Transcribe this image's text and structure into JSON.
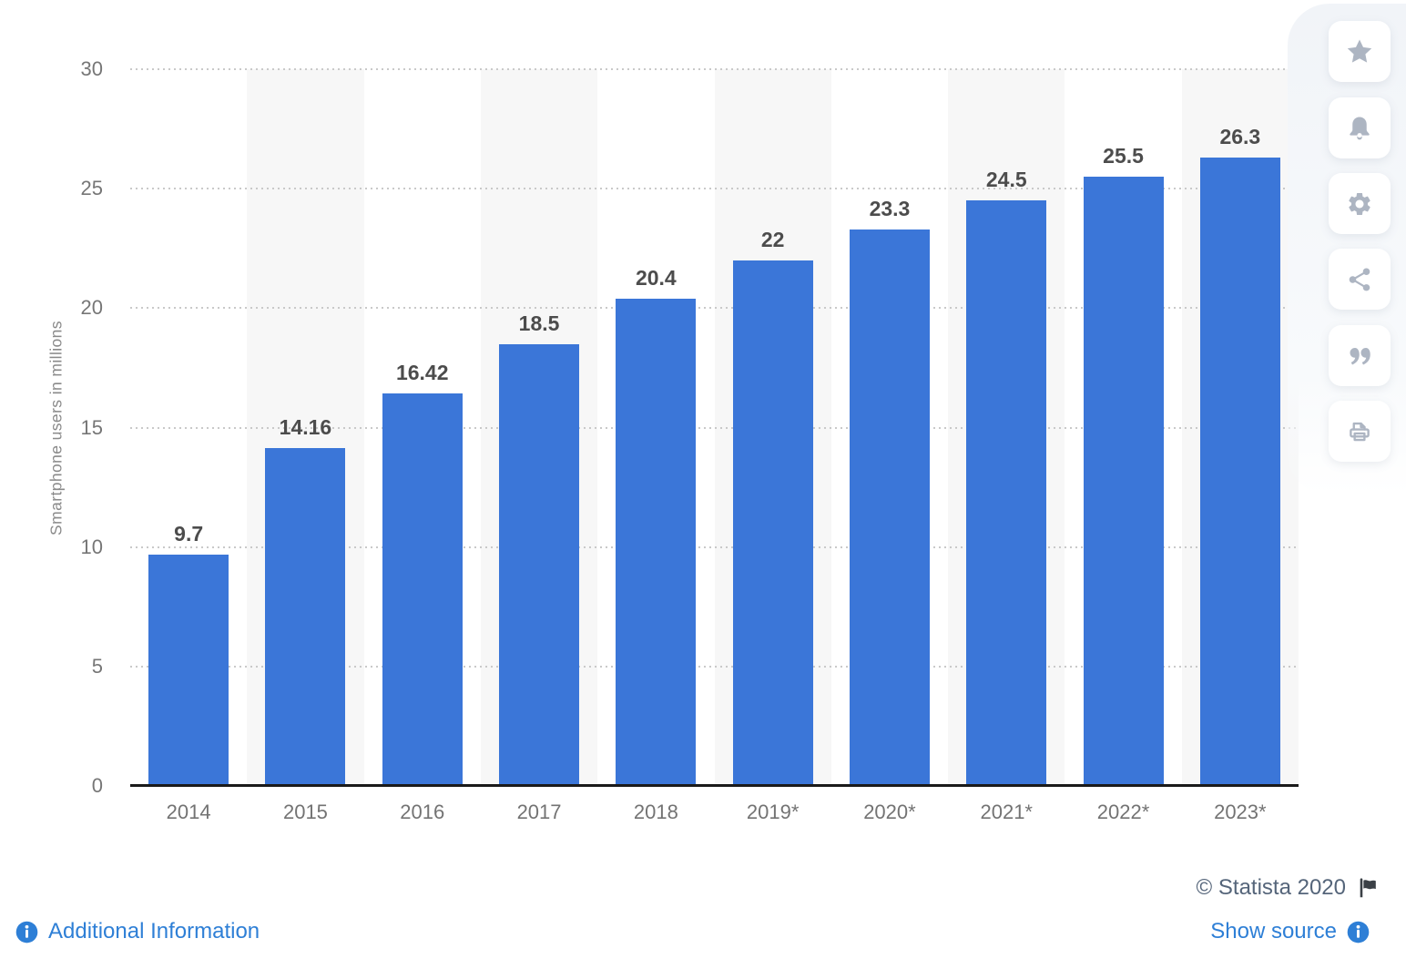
{
  "chart_data": {
    "type": "bar",
    "title": "",
    "categories": [
      "2014",
      "2015",
      "2016",
      "2017",
      "2018",
      "2019*",
      "2020*",
      "2021*",
      "2022*",
      "2023*"
    ],
    "values": [
      9.7,
      14.16,
      16.42,
      18.5,
      20.4,
      22,
      23.3,
      24.5,
      25.5,
      26.3
    ],
    "value_labels": [
      "9.7",
      "14.16",
      "16.42",
      "18.5",
      "20.4",
      "22",
      "23.3",
      "24.5",
      "25.5",
      "26.3"
    ],
    "xlabel": "",
    "ylabel": "Smartphone users in millions",
    "yticks": [
      0,
      5,
      10,
      15,
      20,
      25,
      30
    ],
    "ylim": [
      0,
      30
    ],
    "grid": "dotted horizontal gridlines",
    "legend": "none",
    "bar_color": "#3b76d8",
    "stripe_color": "#f7f7f7"
  },
  "toolbar": {
    "items": [
      {
        "name": "favorite",
        "icon": "star-icon"
      },
      {
        "name": "notifications",
        "icon": "bell-icon"
      },
      {
        "name": "settings",
        "icon": "gear-icon"
      },
      {
        "name": "share",
        "icon": "share-icon"
      },
      {
        "name": "cite",
        "icon": "quote-icon"
      },
      {
        "name": "print",
        "icon": "printer-icon"
      }
    ]
  },
  "footer": {
    "copyright": "© Statista 2020",
    "flag_icon": "flag-icon",
    "additional_information": "Additional Information",
    "show_source": "Show source",
    "info_icon": "info-icon"
  },
  "colors": {
    "bar": "#3b76d8",
    "stripe": "#f7f7f7",
    "link": "#2e7fd6",
    "copyright_text": "#55657a",
    "icon_gray": "#adb5c2"
  }
}
